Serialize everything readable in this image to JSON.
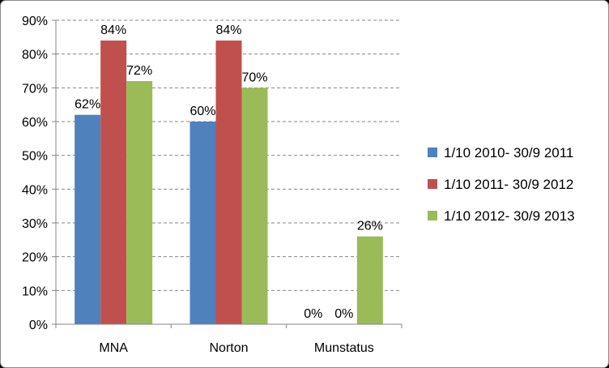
{
  "chart_data": {
    "type": "bar",
    "categories": [
      "MNA",
      "Norton",
      "Munstatus"
    ],
    "series": [
      {
        "name": "1/10 2010- 30/9 2011",
        "color": "#4f81bd",
        "values": [
          62,
          60,
          0
        ]
      },
      {
        "name": "1/10 2011- 30/9 2012",
        "color": "#c0504d",
        "values": [
          84,
          84,
          0
        ]
      },
      {
        "name": "1/10 2012- 30/9 2013",
        "color": "#9bbb59",
        "values": [
          72,
          70,
          26
        ]
      }
    ],
    "data_labels": [
      [
        "62%",
        "60%",
        ""
      ],
      [
        "84%",
        "84%",
        "0%"
      ],
      [
        "72%",
        "70%",
        "26%"
      ]
    ],
    "zero_labels": {
      "Munstatus": "0% 0%"
    },
    "y_ticks": [
      "0%",
      "10%",
      "20%",
      "30%",
      "40%",
      "50%",
      "60%",
      "70%",
      "80%",
      "90%"
    ],
    "ylim": [
      0,
      90
    ],
    "y_unit": "%",
    "grid": true,
    "legend_position": "right"
  }
}
